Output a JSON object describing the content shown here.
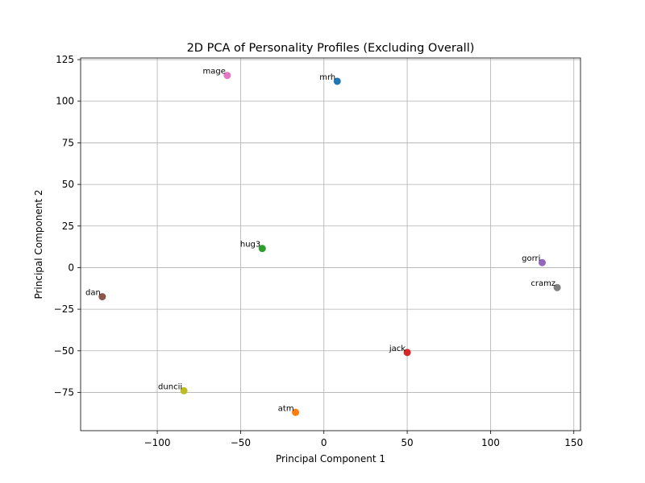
{
  "chart_data": {
    "type": "scatter",
    "title": "2D PCA of Personality Profiles (Excluding Overall)",
    "xlabel": "Principal Component 1",
    "ylabel": "Principal Component 2",
    "xlim": [
      -146,
      154
    ],
    "ylim": [
      -98,
      126
    ],
    "xticks": [
      -100,
      -50,
      0,
      50,
      100,
      150
    ],
    "yticks": [
      -75,
      -50,
      -25,
      0,
      25,
      50,
      75,
      100,
      125
    ],
    "xtick_labels": [
      "−100",
      "−50",
      "0",
      "50",
      "100",
      "150"
    ],
    "ytick_labels": [
      "−75",
      "−50",
      "−25",
      "0",
      "25",
      "50",
      "75",
      "100",
      "125"
    ],
    "grid": true,
    "points": [
      {
        "label": "mrh",
        "x": 8,
        "y": 112,
        "color": "#1f77b4"
      },
      {
        "label": "atm",
        "x": -17,
        "y": -87,
        "color": "#ff7f0e"
      },
      {
        "label": "hug3",
        "x": -37,
        "y": 11.5,
        "color": "#2ca02c"
      },
      {
        "label": "jack",
        "x": 50,
        "y": -51,
        "color": "#d62728"
      },
      {
        "label": "gorri",
        "x": 131,
        "y": 3,
        "color": "#9467bd"
      },
      {
        "label": "dan",
        "x": -133,
        "y": -17.5,
        "color": "#8c564b"
      },
      {
        "label": "mage",
        "x": -58,
        "y": 115.5,
        "color": "#e377c2"
      },
      {
        "label": "cramz",
        "x": 140,
        "y": -12,
        "color": "#7f7f7f"
      },
      {
        "label": "duncii",
        "x": -84,
        "y": -74,
        "color": "#bcbd22"
      }
    ]
  }
}
